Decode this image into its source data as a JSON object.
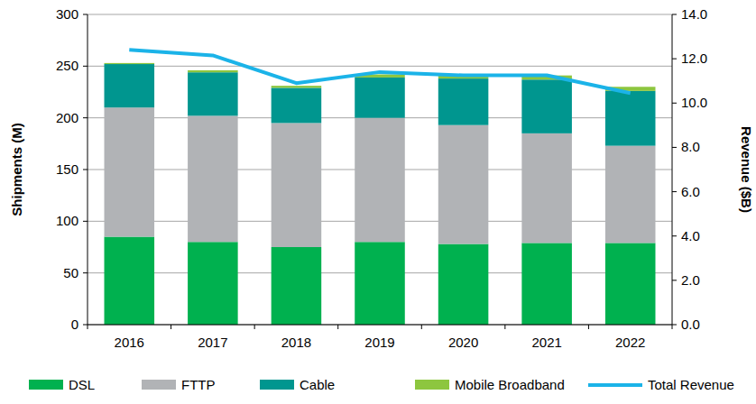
{
  "chart_data": {
    "type": "bar",
    "stacked": true,
    "grid": true,
    "legend": "bottom",
    "categories": [
      "2016",
      "2017",
      "2018",
      "2019",
      "2020",
      "2021",
      "2022"
    ],
    "y_label": "Shipments (M)",
    "y2_label": "Revenue ($B)",
    "ylim": [
      0,
      300
    ],
    "yticks": [
      0,
      50,
      100,
      150,
      200,
      250,
      300
    ],
    "y2lim": [
      0,
      14
    ],
    "y2ticks": [
      {
        "value": 0,
        "label": "0.0"
      },
      {
        "value": 2,
        "label": "2.0"
      },
      {
        "value": 4,
        "label": "4.0"
      },
      {
        "value": 6,
        "label": "6.0"
      },
      {
        "value": 8,
        "label": "8.0"
      },
      {
        "value": 10,
        "label": "10.0"
      },
      {
        "value": 12,
        "label": "12.0"
      },
      {
        "value": 14,
        "label": "14.0"
      }
    ],
    "series": [
      {
        "name": "DSL",
        "color": "#00b14f",
        "values": [
          85,
          80,
          75,
          80,
          78,
          79,
          79
        ]
      },
      {
        "name": "FTTP",
        "color": "#b1b3b6",
        "values": [
          125,
          122,
          120,
          120,
          115,
          106,
          94
        ]
      },
      {
        "name": "Cable",
        "color": "#00968f",
        "values": [
          42,
          42,
          34,
          39,
          45,
          52,
          53
        ]
      },
      {
        "name": "Mobile Broadband",
        "color": "#8dc63f",
        "values": [
          1,
          2,
          2,
          3,
          3,
          4,
          4
        ]
      },
      {
        "name": "Total Revenue",
        "color": "#1bb3e8",
        "type": "line",
        "axis": "y2",
        "values": [
          12.4,
          12.15,
          10.9,
          11.4,
          11.25,
          11.25,
          10.45
        ]
      }
    ]
  }
}
